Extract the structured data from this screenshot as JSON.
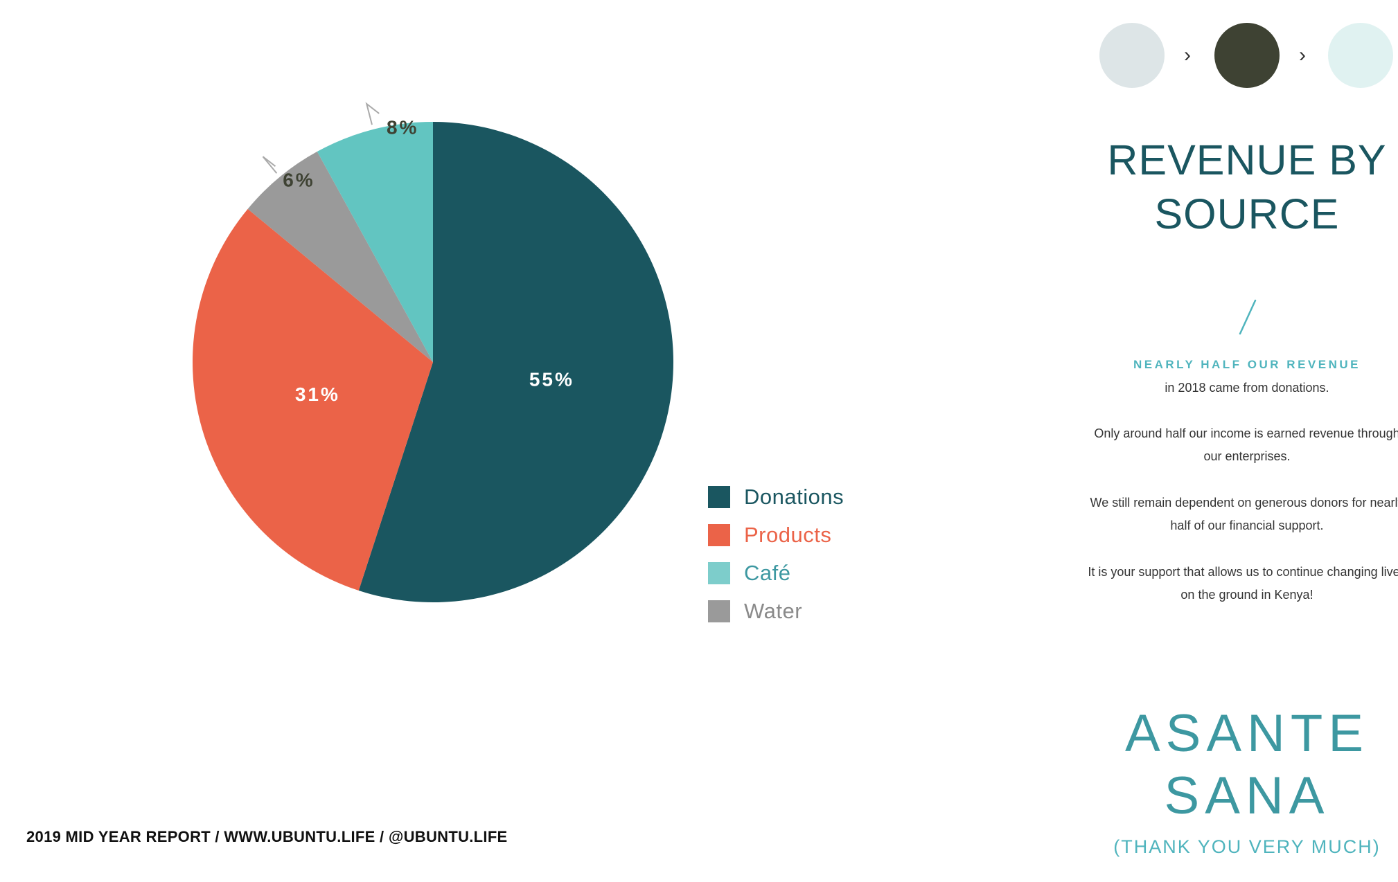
{
  "chart_data": {
    "type": "pie",
    "title": "REVENUE BY SOURCE",
    "slices": [
      {
        "name": "Donations",
        "value": 55,
        "label": "55%",
        "color": "#1a5660"
      },
      {
        "name": "Products",
        "value": 31,
        "label": "31%",
        "color": "#eb6348"
      },
      {
        "name": "Water",
        "value": 6,
        "label": "6%",
        "color": "#9a9a9a"
      },
      {
        "name": "Café",
        "value": 8,
        "label": "8%",
        "color": "#62c5c1"
      }
    ],
    "legend": {
      "placement": "right",
      "entries": [
        {
          "name": "Donations",
          "color": "#1a5660",
          "text_color": "#1a5660"
        },
        {
          "name": "Products",
          "color": "#eb6348",
          "text_color": "#eb6348"
        },
        {
          "name": "Café",
          "color": "#7dcdcb",
          "text_color": "#3d98a1"
        },
        {
          "name": "Water",
          "color": "#9a9a9a",
          "text_color": "#8a8a8a"
        }
      ]
    }
  },
  "footer": {
    "text": "2019 MID YEAR REPORT / WWW.UBUNTU.LIFE / @UBUNTU.LIFE"
  },
  "steps": {
    "colors": [
      "#dde5e7",
      "#3e4233",
      "#e0f2f1"
    ],
    "arrow": "›"
  },
  "sidebar": {
    "title_line1": "REVENUE BY",
    "title_line2": "SOURCE",
    "highlight": "NEARLY HALF OUR REVENUE",
    "paragraphs": [
      "in 2018 came from donations.",
      "Only around half our income is earned revenue through our enterprises.",
      "We still remain dependent on generous donors for nearly half of our financial support.",
      "It is your support that allows us to continue changing lives on the ground in Kenya!"
    ],
    "asante_line1": "ASANTE",
    "asante_line2": "SANA",
    "thanks": "(THANK YOU VERY MUCH)"
  }
}
